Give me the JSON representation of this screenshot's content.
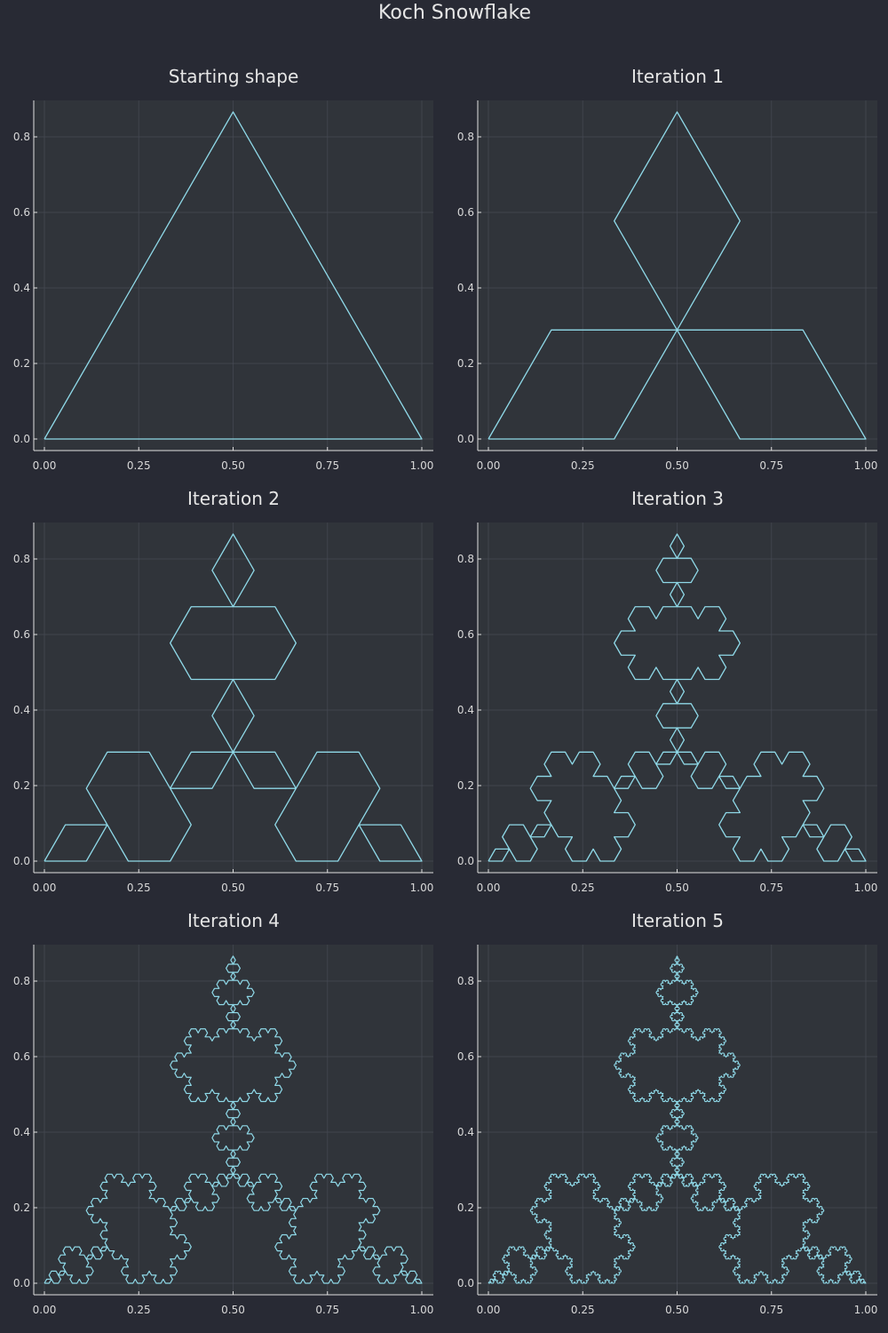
{
  "figure": {
    "title": "Koch Snowflake",
    "background": "#282a34",
    "plot_background": "#30343a",
    "line_color": "#8fd9e8"
  },
  "chart_data": [
    {
      "type": "line",
      "title": "Starting shape",
      "iteration": 0,
      "xlim": [
        0,
        1
      ],
      "ylim": [
        0,
        0.866
      ],
      "xticks": [
        "0.00",
        "0.25",
        "0.50",
        "0.75",
        "1.00"
      ],
      "yticks": [
        "0.0",
        "0.2",
        "0.4",
        "0.6",
        "0.8"
      ],
      "series": [
        {
          "x": [
            0,
            0.5,
            1,
            0
          ],
          "y": [
            0,
            0.866,
            0,
            0
          ]
        }
      ]
    },
    {
      "type": "line",
      "title": "Iteration 1",
      "iteration": 1,
      "xlim": [
        0,
        1
      ],
      "ylim": [
        0,
        0.866
      ],
      "xticks": [
        "0.00",
        "0.25",
        "0.50",
        "0.75",
        "1.00"
      ],
      "yticks": [
        "0.0",
        "0.2",
        "0.4",
        "0.6",
        "0.8"
      ]
    },
    {
      "type": "line",
      "title": "Iteration 2",
      "iteration": 2,
      "xlim": [
        0,
        1
      ],
      "ylim": [
        0,
        0.866
      ],
      "xticks": [
        "0.00",
        "0.25",
        "0.50",
        "0.75",
        "1.00"
      ],
      "yticks": [
        "0.0",
        "0.2",
        "0.4",
        "0.6",
        "0.8"
      ]
    },
    {
      "type": "line",
      "title": "Iteration 3",
      "iteration": 3,
      "xlim": [
        0,
        1
      ],
      "ylim": [
        0,
        0.866
      ],
      "xticks": [
        "0.00",
        "0.25",
        "0.50",
        "0.75",
        "1.00"
      ],
      "yticks": [
        "0.0",
        "0.2",
        "0.4",
        "0.6",
        "0.8"
      ]
    },
    {
      "type": "line",
      "title": "Iteration 4",
      "iteration": 4,
      "xlim": [
        0,
        1
      ],
      "ylim": [
        0,
        0.866
      ],
      "xticks": [
        "0.00",
        "0.25",
        "0.50",
        "0.75",
        "1.00"
      ],
      "yticks": [
        "0.0",
        "0.2",
        "0.4",
        "0.6",
        "0.8"
      ]
    },
    {
      "type": "line",
      "title": "Iteration 5",
      "iteration": 5,
      "xlim": [
        0,
        1
      ],
      "ylim": [
        0,
        0.866
      ],
      "xticks": [
        "0.00",
        "0.25",
        "0.50",
        "0.75",
        "1.00"
      ],
      "yticks": [
        "0.0",
        "0.2",
        "0.4",
        "0.6",
        "0.8"
      ]
    }
  ]
}
